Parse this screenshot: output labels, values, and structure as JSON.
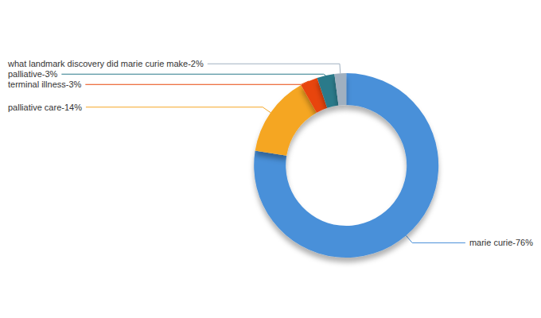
{
  "chart_data": {
    "type": "pie",
    "categories": [
      "marie curie-76%",
      "palliative care-14%",
      "terminal illness-3%",
      "palliative-3%",
      "what landmark discovery did marie curie make-2%"
    ],
    "values": [
      76,
      14,
      3,
      3,
      2
    ],
    "colors": [
      "#4A90D9",
      "#F5A623",
      "#E8450A",
      "#2A7A8A",
      "#A0B0C0"
    ]
  }
}
